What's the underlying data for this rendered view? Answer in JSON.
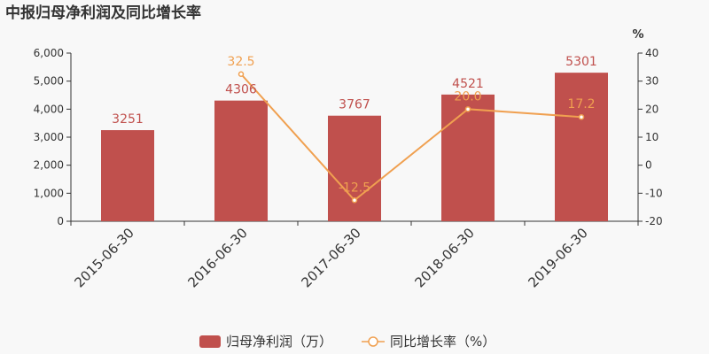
{
  "title": "中报归母净利润及同比增长率",
  "chart_data": {
    "type": "bar",
    "categories": [
      "2015-06-30",
      "2016-06-30",
      "2017-06-30",
      "2018-06-30",
      "2019-06-30"
    ],
    "series": [
      {
        "name": "归母净利润（万）",
        "type": "bar",
        "axis": "left",
        "values": [
          3251,
          4306,
          3767,
          4521,
          5301
        ],
        "labels": [
          "3251",
          "4306",
          "3767",
          "4521",
          "5301"
        ]
      },
      {
        "name": "同比增长率（%）",
        "type": "line",
        "axis": "right",
        "values": [
          null,
          32.5,
          -12.5,
          20.0,
          17.2
        ],
        "labels": [
          "",
          "32.5",
          "-12.5",
          "20.0",
          "17.2"
        ]
      }
    ],
    "y_left": {
      "min": 0,
      "max": 6000,
      "ticks": [
        0,
        1000,
        2000,
        3000,
        4000,
        5000,
        6000
      ],
      "tick_labels": [
        "0",
        "1,000",
        "2,000",
        "3,000",
        "4,000",
        "5,000",
        "6,000"
      ]
    },
    "y_right": {
      "min": -20,
      "max": 40,
      "ticks": [
        -20,
        -10,
        0,
        10,
        20,
        30,
        40
      ],
      "tick_labels": [
        "-20",
        "-10",
        "0",
        "10",
        "20",
        "30",
        "40"
      ],
      "unit": "%"
    },
    "legend_position": "bottom",
    "grid": false
  },
  "colors": {
    "bar": "#c0504d",
    "line": "#f0a050",
    "axis": "#333333"
  }
}
